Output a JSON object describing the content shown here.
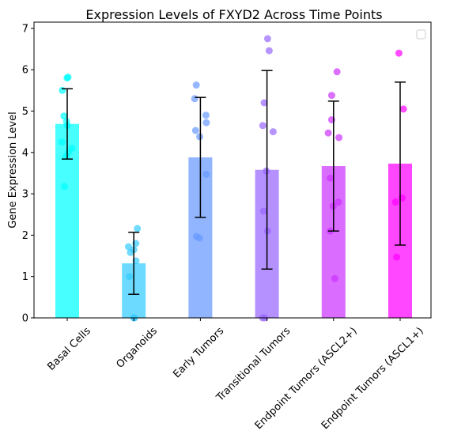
{
  "chart_data": {
    "type": "bar",
    "title": "Expression Levels of FXYD2 Across Time Points",
    "xlabel": "",
    "ylabel": "Gene Expression Level",
    "ylim": [
      0,
      7.15
    ],
    "yticks": [
      0,
      1,
      2,
      3,
      4,
      5,
      6,
      7
    ],
    "grid": false,
    "legend": "top-right (empty)",
    "categories": [
      "Basal Cells",
      "Organoids",
      "Early Tumors",
      "Transitional Tumors",
      "Endpoint Tumors (ASCL2+)",
      "Endpoint Tumors (ASCL1+)"
    ],
    "colors": [
      "#00ffff",
      "#33ccff",
      "#6699ff",
      "#9966ff",
      "#cc33ff",
      "#ff00ff"
    ],
    "values": [
      4.69,
      1.32,
      3.88,
      3.58,
      3.67,
      3.73
    ],
    "errors": [
      0.85,
      0.75,
      1.45,
      2.4,
      1.57,
      1.97
    ],
    "points": [
      [
        5.8,
        5.82,
        5.5,
        4.88,
        4.75,
        4.65,
        4.25,
        4.1,
        4.0,
        3.9,
        3.18
      ],
      [
        2.16,
        1.8,
        1.72,
        1.65,
        1.58,
        1.38,
        1.0,
        0.0,
        0.0
      ],
      [
        5.63,
        5.3,
        4.9,
        4.72,
        4.53,
        4.38,
        3.47,
        1.97,
        1.93
      ],
      [
        6.75,
        6.46,
        5.2,
        4.65,
        4.5,
        3.55,
        2.58,
        2.1,
        0.0,
        0.0
      ],
      [
        5.95,
        5.38,
        4.79,
        4.47,
        4.36,
        3.38,
        2.8,
        2.7,
        2.1,
        0.95
      ],
      [
        6.4,
        5.05,
        2.9,
        2.8,
        1.47
      ]
    ]
  }
}
